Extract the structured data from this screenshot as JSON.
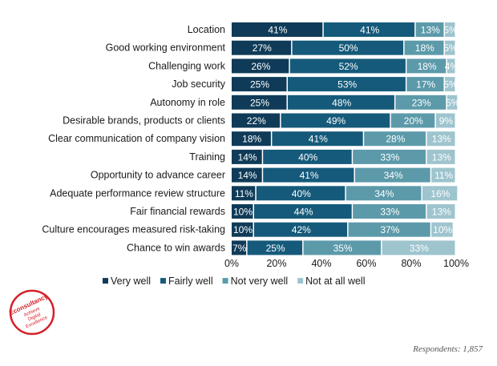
{
  "chart_data": {
    "type": "bar",
    "orientation": "horizontal",
    "stacked": true,
    "categories": [
      "Location",
      "Good working environment",
      "Challenging work",
      "Job security",
      "Autonomy in role",
      "Desirable brands, products or clients",
      "Clear communication of company vision",
      "Training",
      "Opportunity to advance career",
      "Adequate performance review structure",
      "Fair financial rewards",
      "Culture encourages measured risk-taking",
      "Chance to win awards"
    ],
    "series": [
      {
        "name": "Very well",
        "color": "#0f3b58",
        "values": [
          41,
          27,
          26,
          25,
          25,
          22,
          18,
          14,
          14,
          11,
          10,
          10,
          7
        ]
      },
      {
        "name": "Fairly well",
        "color": "#155a7a",
        "values": [
          41,
          50,
          52,
          53,
          48,
          49,
          41,
          40,
          41,
          40,
          44,
          42,
          25
        ]
      },
      {
        "name": "Not very well",
        "color": "#5c9aaa",
        "values": [
          13,
          18,
          18,
          17,
          23,
          20,
          28,
          33,
          34,
          34,
          33,
          37,
          35
        ]
      },
      {
        "name": "Not at all well",
        "color": "#9ec4ce",
        "values": [
          5,
          5,
          4,
          5,
          5,
          9,
          13,
          13,
          11,
          16,
          13,
          10,
          33
        ]
      }
    ],
    "xlim": [
      0,
      100
    ],
    "xticks": [
      "0%",
      "20%",
      "40%",
      "60%",
      "80%",
      "100%"
    ],
    "value_suffix": "%",
    "legend_position": "bottom",
    "grid": false
  },
  "logo_text": [
    "Econsultancy",
    "Achieve",
    "Digital",
    "Excellence"
  ],
  "footnote": "Respondents: 1,857"
}
